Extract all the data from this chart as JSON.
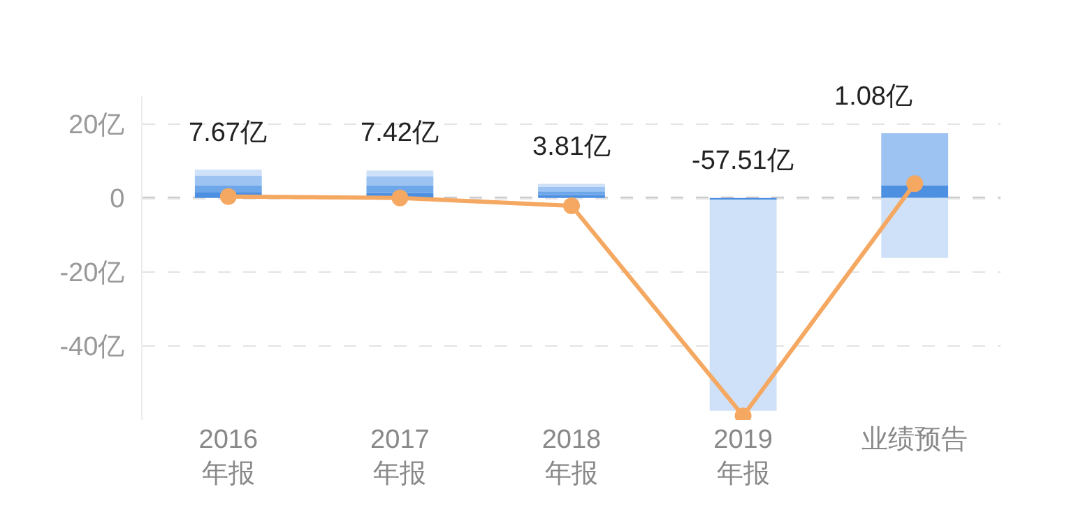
{
  "chart_data": {
    "type": "bar",
    "stacked": true,
    "categories": [
      "2016\n年报",
      "2017\n年报",
      "2018\n年报",
      "2019\n年报",
      "业绩预告"
    ],
    "series": [
      {
        "color": "#4d8fe0",
        "values": [
          1.5,
          1.4,
          0.8,
          -0.5,
          3.4
        ]
      },
      {
        "color": "#6ea6ea",
        "values": [
          1.9,
          2.0,
          1.0,
          null,
          null
        ]
      },
      {
        "color": "#9cc3f2",
        "values": [
          2.6,
          2.4,
          1.2,
          null,
          14.1
        ]
      },
      {
        "color": "#cfe1f8",
        "values": [
          1.67,
          1.62,
          0.81,
          -57.01,
          -16.2
        ]
      },
      {
        "type": "line",
        "color": "#f5a862",
        "values": [
          0.4,
          0,
          -2.1,
          -58.9,
          3.9
        ]
      }
    ],
    "totals": [
      "7.67亿",
      "7.42亿",
      "3.81亿",
      "-57.51亿",
      null
    ],
    "annotations": [
      "1.08亿"
    ],
    "ylim": [
      -60,
      27.5
    ],
    "yticks": [
      {
        "value": 20,
        "label": "20亿"
      },
      0,
      {
        "value": -20,
        "label": "-20亿"
      },
      {
        "value": -40,
        "label": "-40亿"
      }
    ],
    "grid": "y",
    "marker": "circle",
    "line_style": "solid",
    "ref_lines": [
      {
        "axis": "y",
        "value": 0,
        "color": "#888888",
        "line_style": "dashed"
      }
    ]
  }
}
